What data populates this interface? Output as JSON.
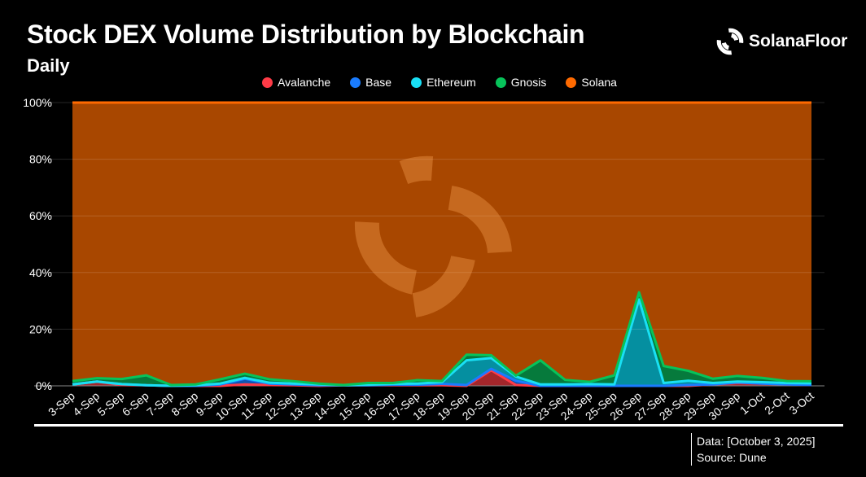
{
  "header": {
    "title": "Stock DEX Volume Distribution by Blockchain",
    "subtitle": "Daily",
    "brand": "SolanaFloor"
  },
  "footer": {
    "data_note": "Data: [October 3, 2025]",
    "source": "Source: Dune"
  },
  "chart_data": {
    "type": "area",
    "stacked": "percent",
    "title": "Stock DEX Volume Distribution by Blockchain",
    "subtitle": "Daily",
    "xlabel": "",
    "ylabel": "",
    "ylim": [
      0,
      100
    ],
    "yticks": [
      "0%",
      "20%",
      "40%",
      "60%",
      "80%",
      "100%"
    ],
    "legend_position": "top",
    "grid": true,
    "categories": [
      "3-Sep",
      "4-Sep",
      "5-Sep",
      "6-Sep",
      "7-Sep",
      "8-Sep",
      "9-Sep",
      "10-Sep",
      "11-Sep",
      "12-Sep",
      "13-Sep",
      "14-Sep",
      "15-Sep",
      "16-Sep",
      "17-Sep",
      "18-Sep",
      "19-Sep",
      "20-Sep",
      "21-Sep",
      "22-Sep",
      "23-Sep",
      "24-Sep",
      "25-Sep",
      "26-Sep",
      "27-Sep",
      "28-Sep",
      "29-Sep",
      "30-Sep",
      "1-Oct",
      "2-Oct",
      "3-Oct"
    ],
    "series": [
      {
        "name": "Avalanche",
        "color": "#ff3b47",
        "fill": "#a3262b",
        "values": [
          0.5,
          1.5,
          0.3,
          0.2,
          0,
          0,
          0,
          0.5,
          0.3,
          0.2,
          0,
          0.2,
          0.2,
          0.2,
          0.2,
          0.2,
          0,
          5.5,
          0.3,
          0,
          0,
          0,
          0,
          0,
          0,
          0,
          0.5,
          1,
          0.8,
          0.5,
          0.3
        ]
      },
      {
        "name": "Base",
        "color": "#1a7cff",
        "fill": "#1055b0",
        "values": [
          0,
          0,
          0.3,
          0,
          0,
          0,
          0.5,
          2,
          0.5,
          0.3,
          0.2,
          0,
          0,
          0.2,
          0.2,
          0.5,
          0.3,
          0.5,
          1.5,
          0,
          0,
          0,
          0,
          0,
          0,
          0.3,
          0,
          0.2,
          0,
          0,
          0
        ]
      },
      {
        "name": "Ethereum",
        "color": "#19e0f5",
        "fill": "#058fa0",
        "values": [
          0,
          0,
          0,
          0,
          0,
          0.2,
          0.3,
          0.3,
          0.3,
          0.3,
          0.3,
          0,
          0.2,
          0.3,
          0.4,
          0.6,
          8.7,
          3.8,
          1.5,
          0.5,
          0.5,
          0.6,
          0.5,
          30.5,
          1,
          1.5,
          0.5,
          0.3,
          0.5,
          0.5,
          0.6
        ]
      },
      {
        "name": "Gnosis",
        "color": "#07c35a",
        "fill": "#067a3c",
        "values": [
          1.2,
          1.2,
          1.8,
          3.5,
          0.3,
          0.3,
          1.5,
          1.5,
          1.2,
          0.8,
          0.3,
          0.1,
          0.6,
          0.3,
          1.2,
          0.4,
          2,
          1,
          0.3,
          8.5,
          1.6,
          0.8,
          3.2,
          2.5,
          6,
          3.5,
          1.5,
          2,
          1.5,
          0.7,
          0.7
        ]
      },
      {
        "name": "Solana",
        "color": "#ff6a00",
        "fill": "#a84700",
        "values": [
          98.3,
          97.3,
          97.6,
          96.3,
          99.7,
          99.5,
          97.7,
          95.7,
          97.7,
          98.4,
          99.2,
          99.7,
          99,
          99,
          98,
          98.3,
          89,
          89.2,
          96.4,
          91,
          97.9,
          98.6,
          96.3,
          67,
          93,
          94.7,
          97.5,
          96.5,
          97.2,
          98.3,
          98.4
        ]
      }
    ]
  }
}
